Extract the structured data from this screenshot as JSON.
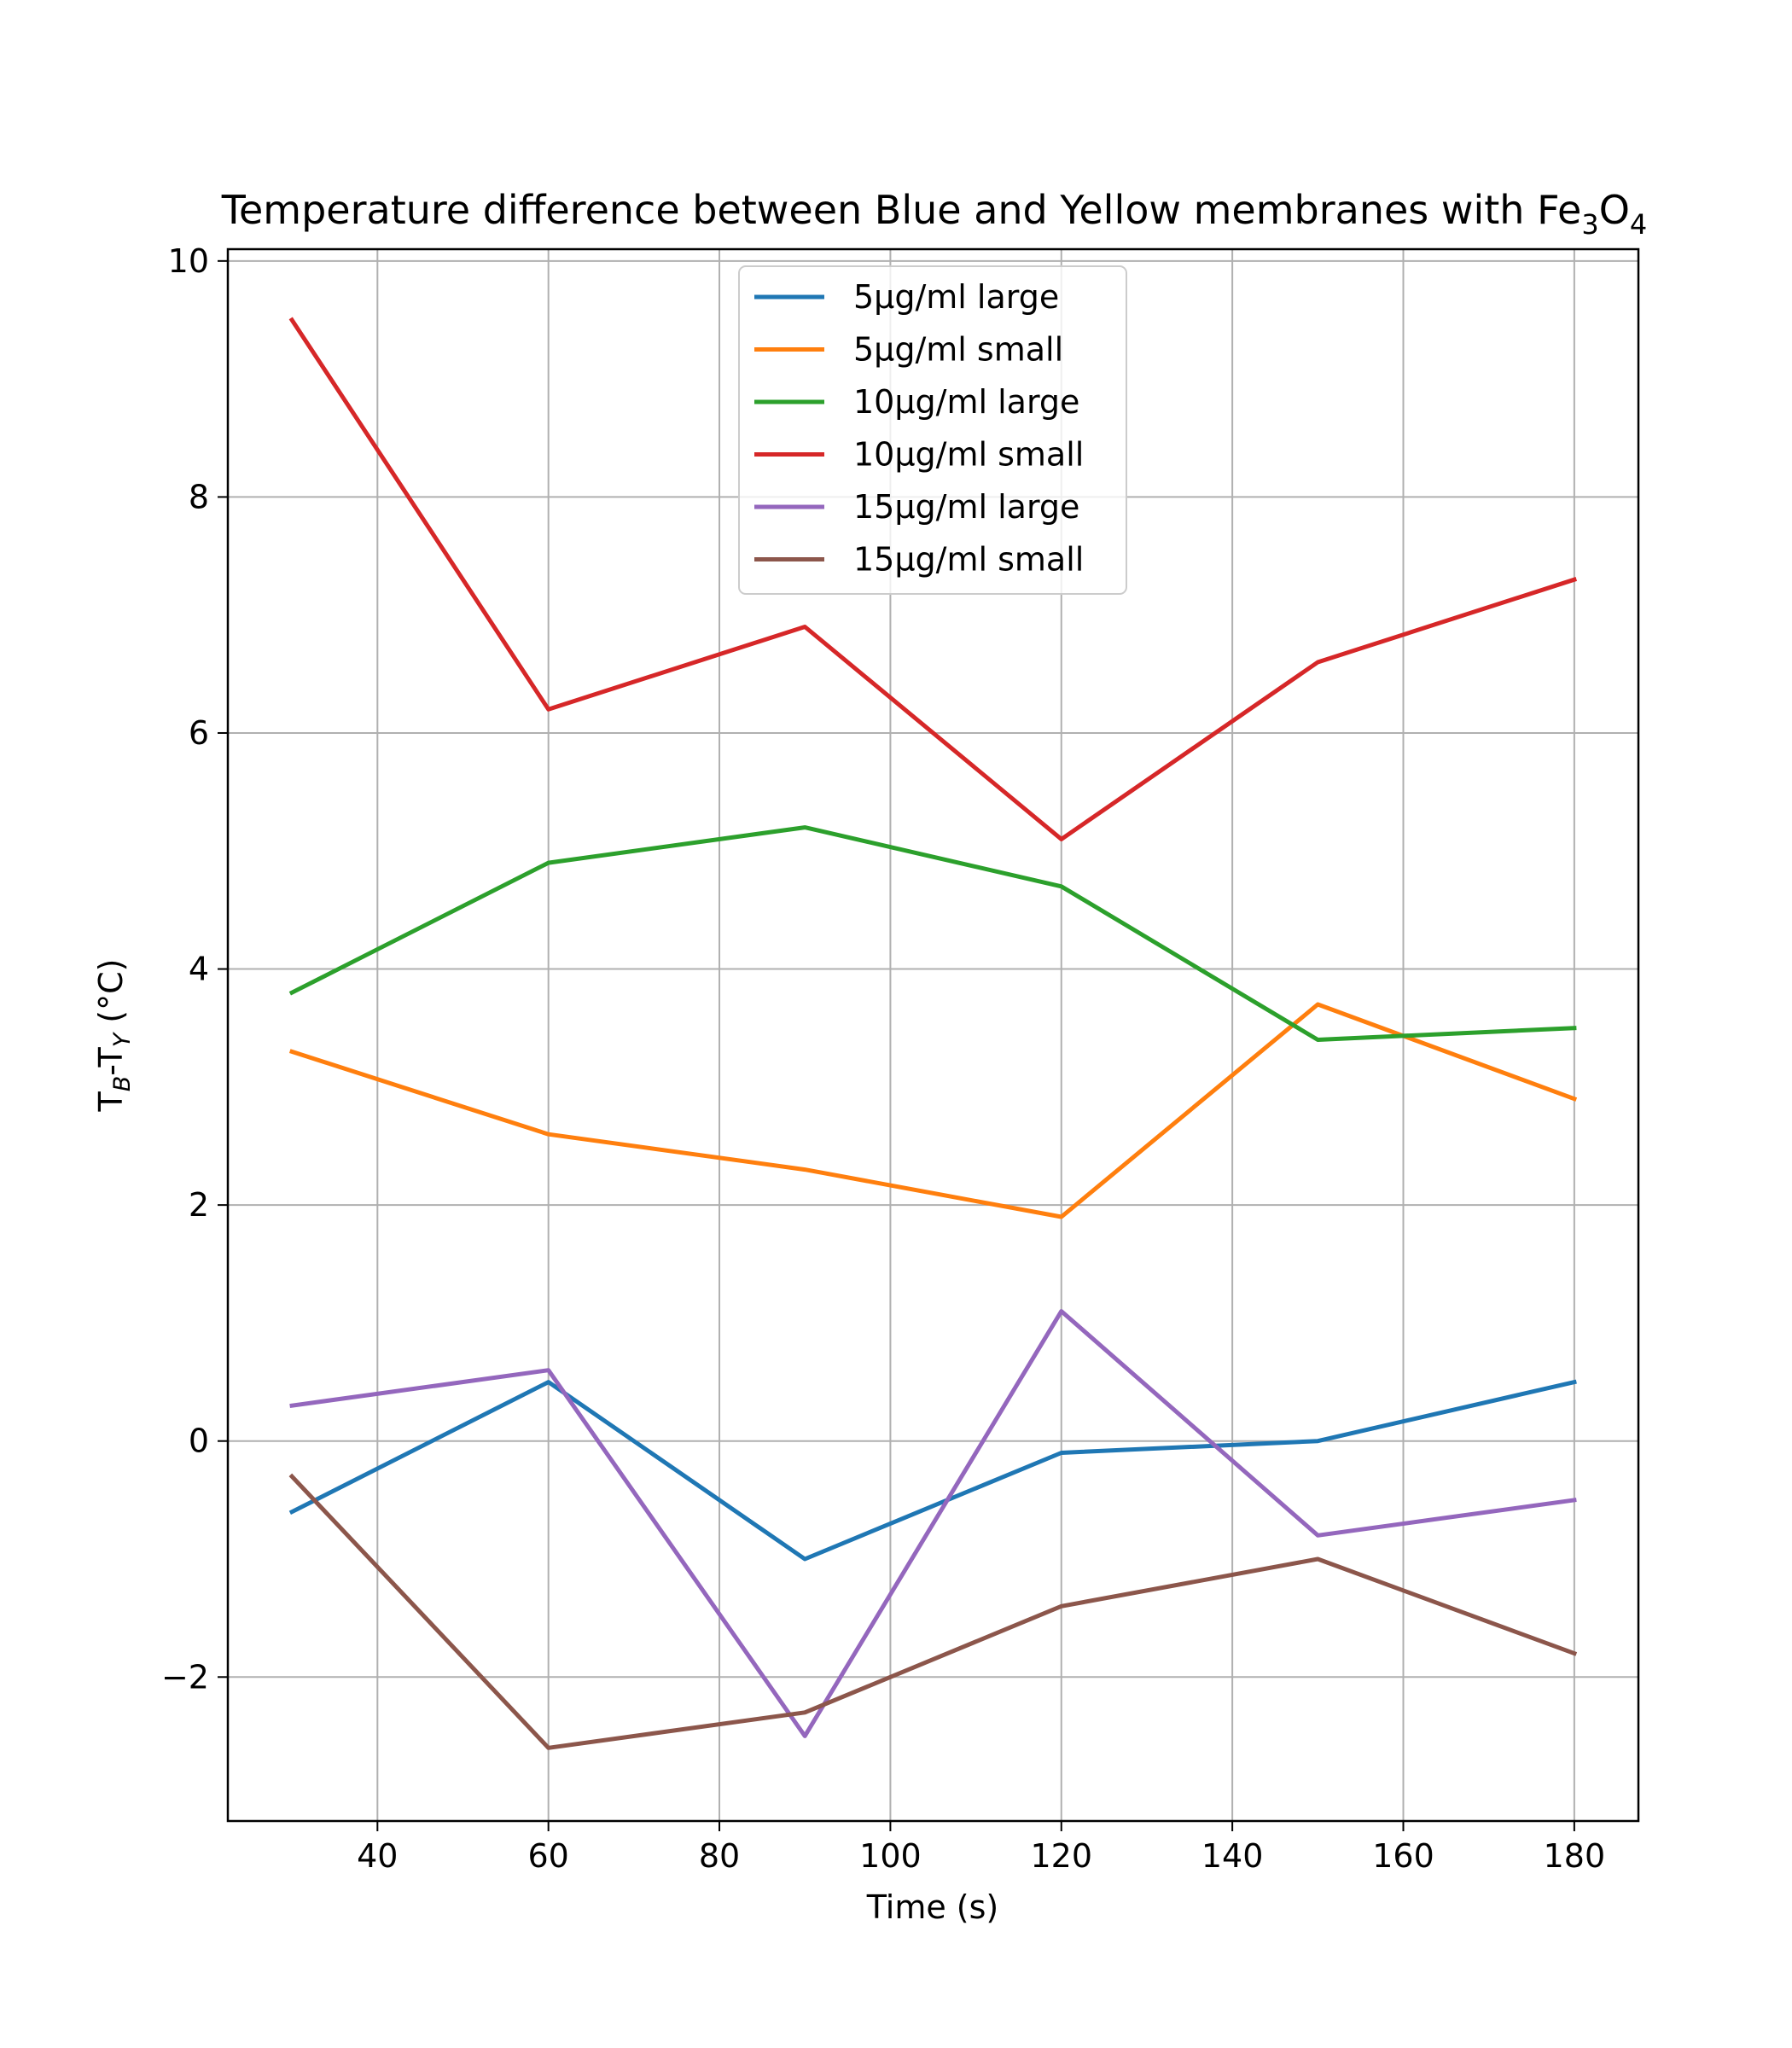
{
  "chart_data": {
    "type": "line",
    "title": "Temperature difference between Blue and Yellow membranes with Fe",
    "title_sub1": "3",
    "title_mid": "O",
    "title_sub2": "4",
    "xlabel": "Time (s)",
    "ylabel_pre": "T",
    "ylabel_sub1": "B",
    "ylabel_mid": "-T",
    "ylabel_sub2": "Y",
    "ylabel_post": " (°C)",
    "x": [
      30,
      60,
      90,
      120,
      150,
      180
    ],
    "xlim": [
      22.5,
      187.5
    ],
    "ylim": [
      -3.22,
      10.1
    ],
    "xticks": [
      40,
      60,
      80,
      100,
      120,
      140,
      160,
      180
    ],
    "yticks": [
      -2,
      0,
      2,
      4,
      6,
      8,
      10
    ],
    "xtick_labels": [
      "40",
      "60",
      "80",
      "100",
      "120",
      "140",
      "160",
      "180"
    ],
    "ytick_labels": [
      "−2",
      "0",
      "2",
      "4",
      "6",
      "8",
      "10"
    ],
    "grid": true,
    "legend_position": "upper-center",
    "series": [
      {
        "name": "5µg/ml large",
        "color": "#1f77b4",
        "values": [
          -0.6,
          0.5,
          -1.0,
          -0.1,
          0.0,
          0.5
        ]
      },
      {
        "name": "5µg/ml small",
        "color": "#ff7f0e",
        "values": [
          3.3,
          2.6,
          2.3,
          1.9,
          3.7,
          2.9
        ]
      },
      {
        "name": "10µg/ml large",
        "color": "#2ca02c",
        "values": [
          3.8,
          4.9,
          5.2,
          4.7,
          3.4,
          3.5
        ]
      },
      {
        "name": "10µg/ml small",
        "color": "#d62728",
        "values": [
          9.5,
          6.2,
          6.9,
          5.1,
          6.6,
          7.3
        ]
      },
      {
        "name": "15µg/ml large",
        "color": "#9467bd",
        "values": [
          0.3,
          0.6,
          -2.5,
          1.1,
          -0.8,
          -0.5
        ]
      },
      {
        "name": "15µg/ml small",
        "color": "#8c564b",
        "values": [
          -0.3,
          -2.6,
          -2.3,
          -1.4,
          -1.0,
          -1.8
        ]
      }
    ]
  }
}
